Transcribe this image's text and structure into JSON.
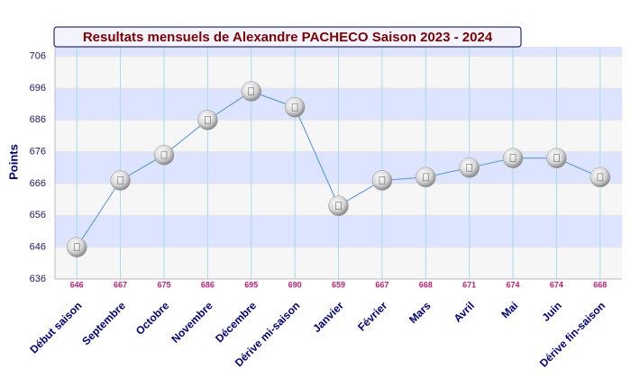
{
  "chart_data": {
    "type": "line",
    "title": "Resultats mensuels de Alexandre PACHECO Saison 2023 - 2024",
    "y_label": "Points",
    "categories": [
      "Début saison",
      "Septembre",
      "Octobre",
      "Novembre",
      "Décembre",
      "Dérive mi-saison",
      "Janvier",
      "Février",
      "Mars",
      "Avril",
      "Mai",
      "Juin",
      "Dérive fin-saison"
    ],
    "series": [
      {
        "name": "Points",
        "color": "#4a90e2",
        "values": [
          646,
          667,
          675,
          686,
          695,
          690,
          659,
          667,
          668,
          671,
          674,
          674,
          668
        ]
      }
    ],
    "ylim": [
      636,
      709
    ],
    "yticks": [
      636,
      646,
      656,
      666,
      676,
      686,
      696,
      706
    ],
    "grid": true
  }
}
